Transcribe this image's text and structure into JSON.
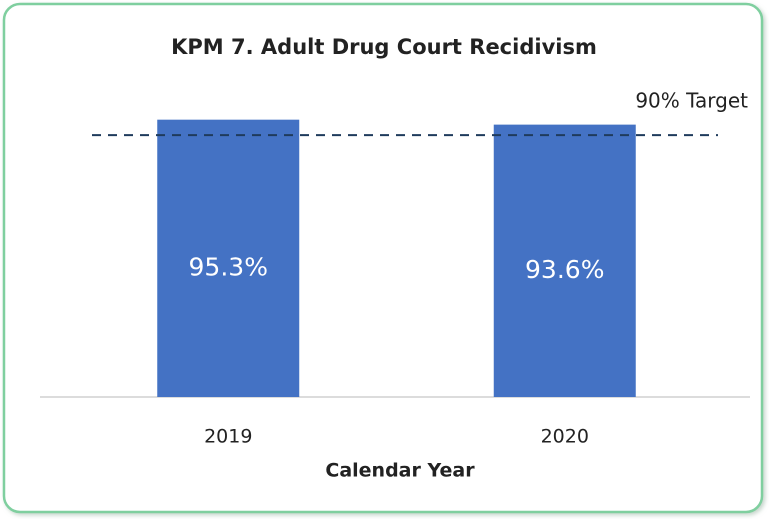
{
  "chart_data": {
    "type": "bar",
    "title": "KPM 7. Adult Drug Court Recidivism",
    "x_label": "Calendar Year",
    "categories": [
      "2019",
      "2020"
    ],
    "values": [
      95.3,
      93.6
    ],
    "value_labels": [
      "95.3%",
      "93.6%"
    ],
    "color": "#4472c4",
    "ylim": [
      0,
      100
    ],
    "target": {
      "value": 90,
      "label": "90% Target",
      "color": "#1f3b5c"
    }
  }
}
